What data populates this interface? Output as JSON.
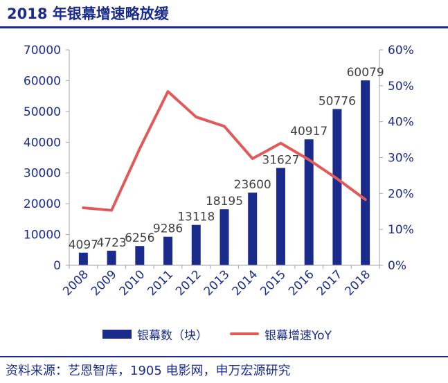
{
  "page": {
    "title": "2018 年银幕增速略放缓",
    "source": "资料来源：艺恩智库，1905 电影网，申万宏源研究"
  },
  "chart_data": {
    "type": "bar+line",
    "title": "2018 年银幕增速略放缓",
    "categories": [
      "2008",
      "2009",
      "2010",
      "2011",
      "2012",
      "2013",
      "2014",
      "2015",
      "2016",
      "2017",
      "2018"
    ],
    "series": [
      {
        "name": "银幕数（块）",
        "type": "bar",
        "axis": "left",
        "color": "#1a2b8c",
        "values": [
          4097,
          4723,
          6256,
          9286,
          13118,
          18195,
          23600,
          31627,
          40917,
          50776,
          60079
        ]
      },
      {
        "name": "银幕增速YoY",
        "type": "line",
        "axis": "right",
        "color": "#e05a5a",
        "values": [
          0.16,
          0.153,
          0.325,
          0.484,
          0.413,
          0.387,
          0.297,
          0.34,
          0.294,
          0.241,
          0.183
        ]
      }
    ],
    "data_labels": [
      "4097",
      "4723",
      "6256",
      "9286",
      "13118",
      "18195",
      "23600",
      "31627",
      "40917",
      "50776",
      "60079"
    ],
    "left_axis": {
      "range": [
        0,
        70000
      ],
      "ticks": [
        0,
        10000,
        20000,
        30000,
        40000,
        50000,
        60000,
        70000
      ],
      "tick_labels": [
        "0",
        "10000",
        "20000",
        "30000",
        "40000",
        "50000",
        "60000",
        "70000"
      ]
    },
    "right_axis": {
      "range": [
        0,
        0.6
      ],
      "ticks": [
        0,
        0.1,
        0.2,
        0.3,
        0.4,
        0.5,
        0.6
      ],
      "tick_labels": [
        "0%",
        "10%",
        "20%",
        "30%",
        "40%",
        "50%",
        "60%"
      ]
    },
    "grid": false,
    "legend": {
      "position": "bottom",
      "labels": [
        "银幕数（块）",
        "银幕增速YoY"
      ]
    },
    "colors": {
      "text": "#1a2b8c",
      "axis": "#a6a6a6"
    }
  }
}
